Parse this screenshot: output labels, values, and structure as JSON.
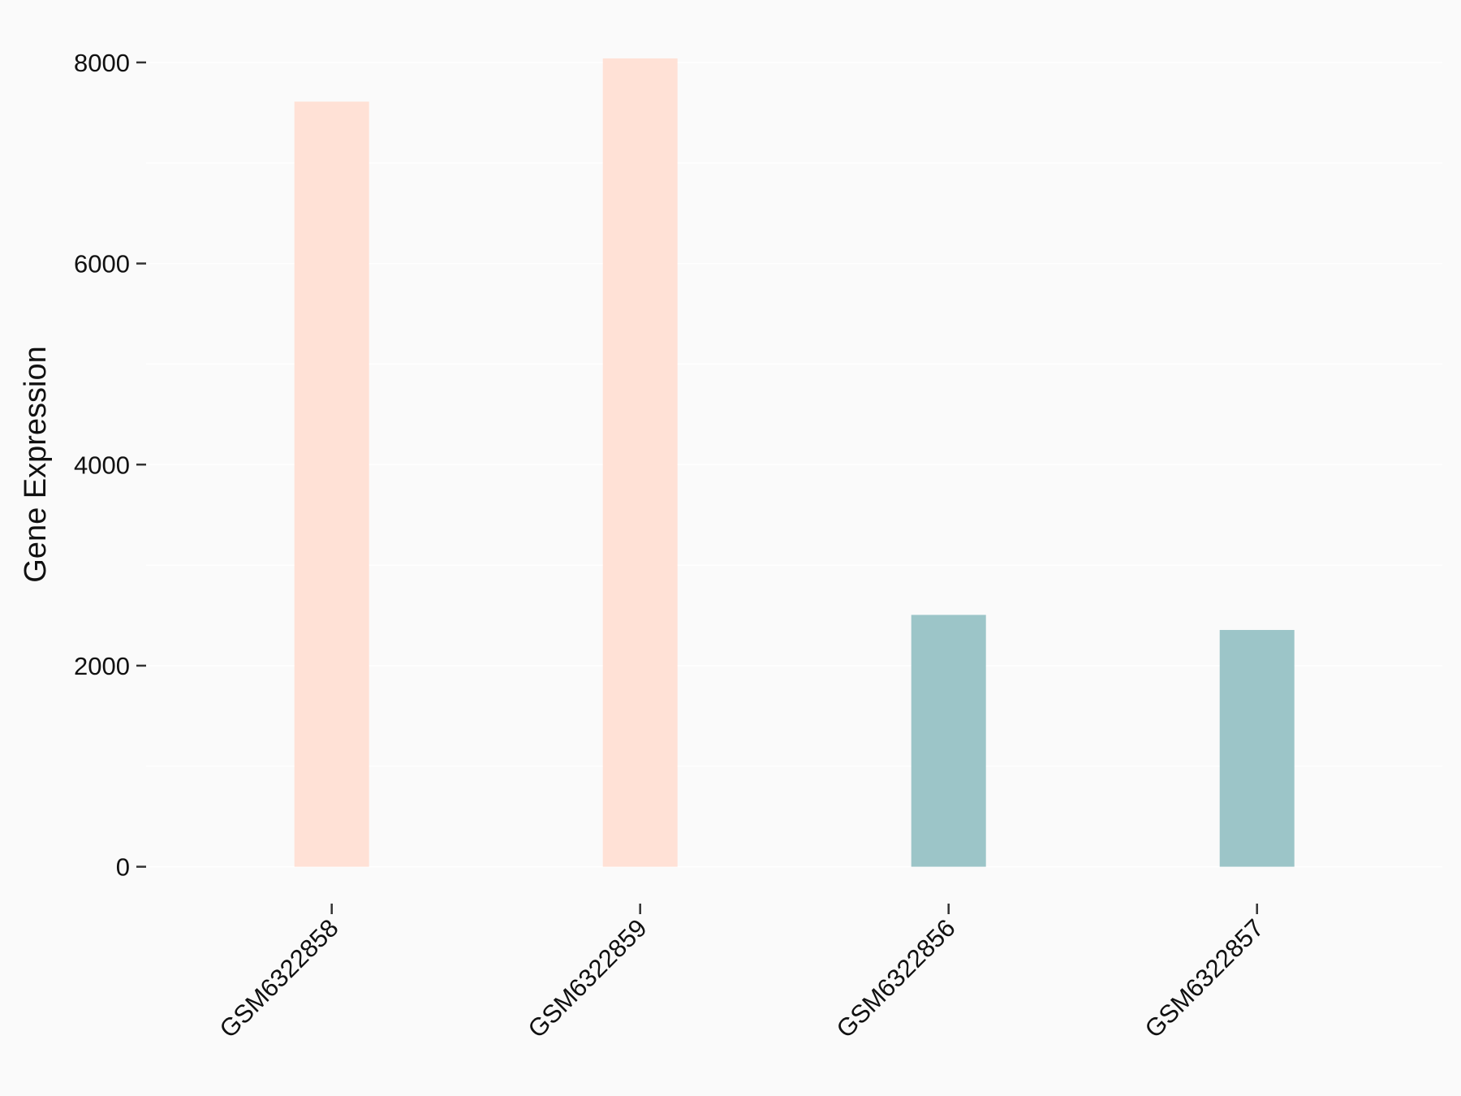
{
  "chart_data": {
    "type": "bar",
    "categories": [
      "GSM6322858",
      "GSM6322859",
      "GSM6322856",
      "GSM6322857"
    ],
    "values": [
      7610,
      8040,
      2505,
      2355
    ],
    "colors": [
      "#FFE1D6",
      "#FFE1D6",
      "#9CC5C8",
      "#9CC5C8"
    ],
    "title": "",
    "xlabel": "",
    "ylabel": "Gene Expression",
    "ylim": [
      0,
      8000
    ],
    "yticks": [
      0,
      2000,
      4000,
      6000,
      8000
    ],
    "ytick_labels": [
      "0",
      "2000",
      "4000",
      "6000",
      "8000"
    ],
    "grid": true,
    "background": "#FAFAFA",
    "legend": "none"
  }
}
